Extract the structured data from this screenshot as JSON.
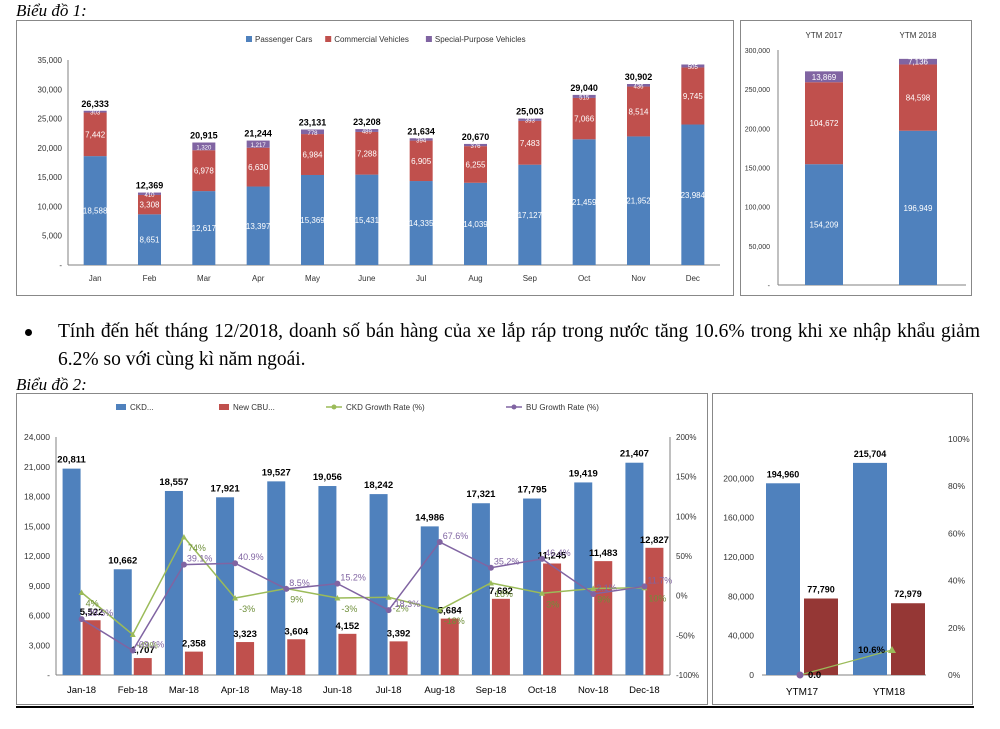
{
  "caption1": "Biểu đồ 1:",
  "caption2": "Biểu đồ 2:",
  "bullet": "Tính đến hết tháng 12/2018, doanh số bán hàng của xe lắp ráp trong nước tăng 10.6% trong khi xe nhập khẩu giảm 6.2% so với cùng kì năm ngoái.",
  "colors": {
    "blue": "#4F81BD",
    "red": "#C0504D",
    "purple": "#8064A2",
    "green": "#9BBB59",
    "darkred": "#953735",
    "axis": "#808080"
  },
  "chart_data": [
    {
      "type": "bar",
      "stacked": true,
      "categories": [
        "Jan",
        "Feb",
        "Mar",
        "Apr",
        "May",
        "June",
        "Jul",
        "Aug",
        "Sep",
        "Oct",
        "Nov",
        "Dec"
      ],
      "series": [
        {
          "name": "Passenger Cars",
          "values": [
            18588,
            8651,
            12617,
            13397,
            15369,
            15431,
            14335,
            14039,
            17127,
            21459,
            21952,
            23984
          ]
        },
        {
          "name": "Commercial Vehicles",
          "values": [
            7442,
            3308,
            6978,
            6630,
            6984,
            7288,
            6905,
            6255,
            7483,
            7066,
            8514,
            9745
          ]
        },
        {
          "name": "Special-Purpose Vehicles",
          "values": [
            303,
            410,
            1320,
            1217,
            778,
            489,
            394,
            376,
            393,
            515,
            436,
            505
          ]
        }
      ],
      "totals": [
        26333,
        12369,
        20915,
        21244,
        23131,
        23208,
        21634,
        20670,
        25003,
        29040,
        30902,
        null
      ],
      "ylim": [
        0,
        35000
      ],
      "yticks": [
        "-",
        "5,000",
        "10,000",
        "15,000",
        "20,000",
        "25,000",
        "30,000",
        "35,000"
      ],
      "legend": "top"
    },
    {
      "type": "bar",
      "stacked": true,
      "categories": [
        "YTM 2017",
        "YTM 2018"
      ],
      "series": [
        {
          "name": "Passenger Cars",
          "values": [
            154209,
            196949
          ]
        },
        {
          "name": "Commercial Vehicles",
          "values": [
            104672,
            84598
          ]
        },
        {
          "name": "Special-Purpose Vehicles",
          "values": [
            13869,
            7136
          ]
        }
      ],
      "ylim": [
        0,
        300000
      ],
      "yticks": [
        "-",
        "50,000",
        "100,000",
        "150,000",
        "200,000",
        "250,000",
        "300,000"
      ]
    },
    {
      "type": "bar",
      "categories": [
        "Jan-18",
        "Feb-18",
        "Mar-18",
        "Apr-18",
        "May-18",
        "Jun-18",
        "Jul-18",
        "Aug-18",
        "Sep-18",
        "Oct-18",
        "Nov-18",
        "Dec-18"
      ],
      "series": [
        {
          "name": "CKD...",
          "values": [
            20811,
            10662,
            18557,
            17921,
            19527,
            19056,
            18242,
            14986,
            17321,
            17795,
            19419,
            21407
          ]
        },
        {
          "name": "New CBU...",
          "values": [
            5522,
            1707,
            2358,
            3323,
            3604,
            4152,
            3392,
            5684,
            7682,
            11245,
            11483,
            12827
          ]
        },
        {
          "name": "CKD Growth Rate (%)",
          "values": [
            4,
            -49,
            74,
            -3,
            9,
            -3,
            -2,
            -18,
            16,
            3,
            9,
            10
          ],
          "labels": [
            "4%",
            "-49%",
            "74%",
            "-3%",
            "9%",
            "-3%",
            "-2%",
            "-18%",
            "16%",
            "3%",
            "9%",
            "10%"
          ]
        },
        {
          "name": "BU Growth Rate (%)",
          "values": [
            -29.5,
            -69.1,
            39.1,
            40.9,
            8.5,
            15.2,
            -18.3,
            67.6,
            35.2,
            46.4,
            2.1,
            11.7
          ],
          "labels": [
            "-29.5%",
            "-69.1%",
            "39.1%",
            "40.9%",
            "8.5%",
            "15.2%",
            "-18.3%",
            "67.6%",
            "35.2%",
            "46.4%",
            "2.1%",
            "11.7%"
          ]
        }
      ],
      "ylim": [
        0,
        24000
      ],
      "yticks": [
        "-",
        "3,000",
        "6,000",
        "9,000",
        "12,000",
        "15,000",
        "18,000",
        "21,000",
        "24,000"
      ],
      "y2lim": [
        -100,
        200
      ],
      "y2ticks": [
        "-100%",
        "-50%",
        "0%",
        "50%",
        "100%",
        "150%",
        "200%"
      ],
      "legend": "top"
    },
    {
      "type": "bar",
      "categories": [
        "YTM17",
        "YTM18"
      ],
      "series": [
        {
          "name": "CKD",
          "values": [
            194960,
            215704
          ]
        },
        {
          "name": "CBU",
          "values": [
            77790,
            72979
          ]
        }
      ],
      "point_labels": [
        "0.0",
        "10.6%"
      ],
      "growth": [
        0.0,
        10.6
      ],
      "ylim": [
        0,
        240000
      ],
      "yticks": [
        "0",
        "40,000",
        "80,000",
        "120,000",
        "160,000",
        "200,000"
      ],
      "y2lim": [
        0,
        100
      ],
      "y2ticks": [
        "0%",
        "20%",
        "40%",
        "60%",
        "80%",
        "100%"
      ]
    }
  ]
}
